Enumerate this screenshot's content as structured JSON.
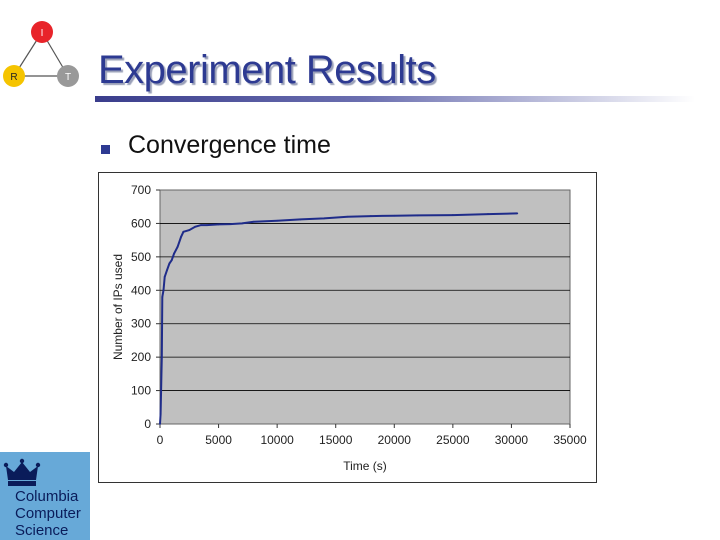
{
  "slide": {
    "title": "Experiment Results",
    "bullet": "Convergence time"
  },
  "logo": {
    "nodes": [
      {
        "label": "I",
        "color": "#e8242a"
      },
      {
        "label": "R",
        "color": "#f5c400"
      },
      {
        "label": "T",
        "color": "#999999"
      }
    ]
  },
  "institution": {
    "lines": [
      "Columbia",
      "Computer",
      "Science"
    ],
    "color": "#67a9d8"
  },
  "chart_data": {
    "type": "line",
    "title": "",
    "xlabel": "Time (s)",
    "ylabel": "Number of IPs used",
    "xlim": [
      0,
      35000
    ],
    "ylim": [
      0,
      700
    ],
    "xticks": [
      0,
      5000,
      10000,
      15000,
      20000,
      25000,
      30000,
      35000
    ],
    "yticks": [
      0,
      100,
      200,
      300,
      400,
      500,
      600,
      700
    ],
    "grid": "horizontal",
    "plot_background": "#c0c0c0",
    "line_color": "#1f2c8a",
    "series": [
      {
        "x": [
          0,
          50,
          150,
          200,
          300,
          400,
          600,
          800,
          1000,
          1200,
          1500,
          1800,
          2000,
          2500,
          3000,
          3500,
          4000,
          5000,
          6000,
          7000,
          8000,
          10000,
          12000,
          14000,
          16000,
          18000,
          20000,
          22000,
          25000,
          28000,
          30500
        ],
        "values": [
          0,
          30,
          200,
          380,
          400,
          440,
          460,
          480,
          490,
          510,
          530,
          560,
          575,
          580,
          590,
          595,
          595,
          597,
          598,
          600,
          605,
          608,
          612,
          615,
          620,
          622,
          623,
          624,
          625,
          628,
          630
        ]
      }
    ]
  }
}
